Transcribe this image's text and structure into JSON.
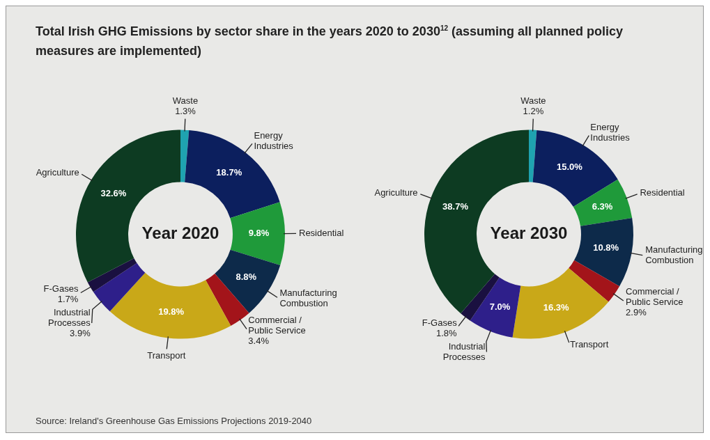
{
  "chart_data": [
    {
      "type": "donut",
      "title": "Total Irish GHG Emissions by sector share in the years 2020 to 2030$^{12}$ (assuming all planned policy measures are implemented)",
      "subtitle": "Year 2020",
      "categories": [
        "Waste",
        "Energy Industries",
        "Residential",
        "Manufacturing Combustion",
        "Commercial / Public Service",
        "Transport",
        "Industrial Processes",
        "F-Gases",
        "Agriculture"
      ],
      "values": [
        1.3,
        18.7,
        9.8,
        8.8,
        3.4,
        19.8,
        3.9,
        1.7,
        32.6
      ],
      "value_labels": [
        "1.3%",
        "18.7%",
        "9.8%",
        "8.8%",
        "3.4%",
        "19.8%",
        "3.9%",
        "1.7%",
        "32.6%"
      ],
      "colors": [
        "#1fa3b0",
        "#0c1f5e",
        "#1f9a3a",
        "#0d2a4a",
        "#a3141a",
        "#c9a818",
        "#2e1f8a",
        "#1a1040",
        "#0d3b22"
      ],
      "legend": false,
      "annotations": [
        "Source: Ireland's Greenhouse Gas Emissions Projections 2019-2040"
      ]
    },
    {
      "type": "donut",
      "subtitle": "Year 2030",
      "categories": [
        "Waste",
        "Energy Industries",
        "Residential",
        "Manufacturing Combustion",
        "Commercial / Public Service",
        "Transport",
        "Industrial Processes",
        "F-Gases",
        "Agriculture"
      ],
      "values": [
        1.2,
        15.0,
        6.3,
        10.8,
        2.9,
        16.3,
        7.0,
        1.8,
        38.7
      ],
      "value_labels": [
        "1.2%",
        "15.0%",
        "6.3%",
        "10.8%",
        "2.9%",
        "16.3%",
        "7.0%",
        "1.8%",
        "38.7%"
      ],
      "colors": [
        "#1fa3b0",
        "#0c1f5e",
        "#1f9a3a",
        "#0d2a4a",
        "#a3141a",
        "#c9a818",
        "#2e1f8a",
        "#1a1040",
        "#0d3b22"
      ],
      "legend": false
    }
  ]
}
